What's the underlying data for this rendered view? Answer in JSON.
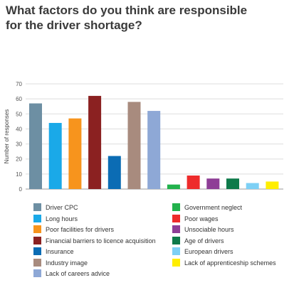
{
  "chart_data": {
    "type": "bar",
    "title_lines": [
      "What factors do you think are responsible",
      "for the driver shortage?"
    ],
    "xlabel": "",
    "ylabel": "Number of responses",
    "ylim": [
      0,
      70
    ],
    "yticks": [
      "0",
      "10",
      "20",
      "30",
      "40",
      "50",
      "60",
      "70"
    ],
    "grid": true,
    "legend_position": "bottom",
    "categories": [
      "Driver CPC",
      "Long hours",
      "Poor facilities for drivers",
      "Financial barriers to licence acquisition",
      "Insurance",
      "Industry image",
      "Lack of careers advice",
      "Government neglect",
      "Poor wages",
      "Unsociable hours",
      "Age of drivers",
      "European drivers",
      "Lack of apprenticeship schemes"
    ],
    "values": [
      57,
      44,
      47,
      62,
      22,
      58,
      52,
      3,
      9,
      7,
      7,
      4,
      5
    ],
    "colors": [
      "#6d8fa3",
      "#1aa9e8",
      "#f7941d",
      "#8b2121",
      "#0b6cb4",
      "#a88b7e",
      "#8ea8d6",
      "#22b24c",
      "#ee2b2b",
      "#8e3e96",
      "#0e7a4a",
      "#7dd0f5",
      "#ffee00"
    ]
  }
}
